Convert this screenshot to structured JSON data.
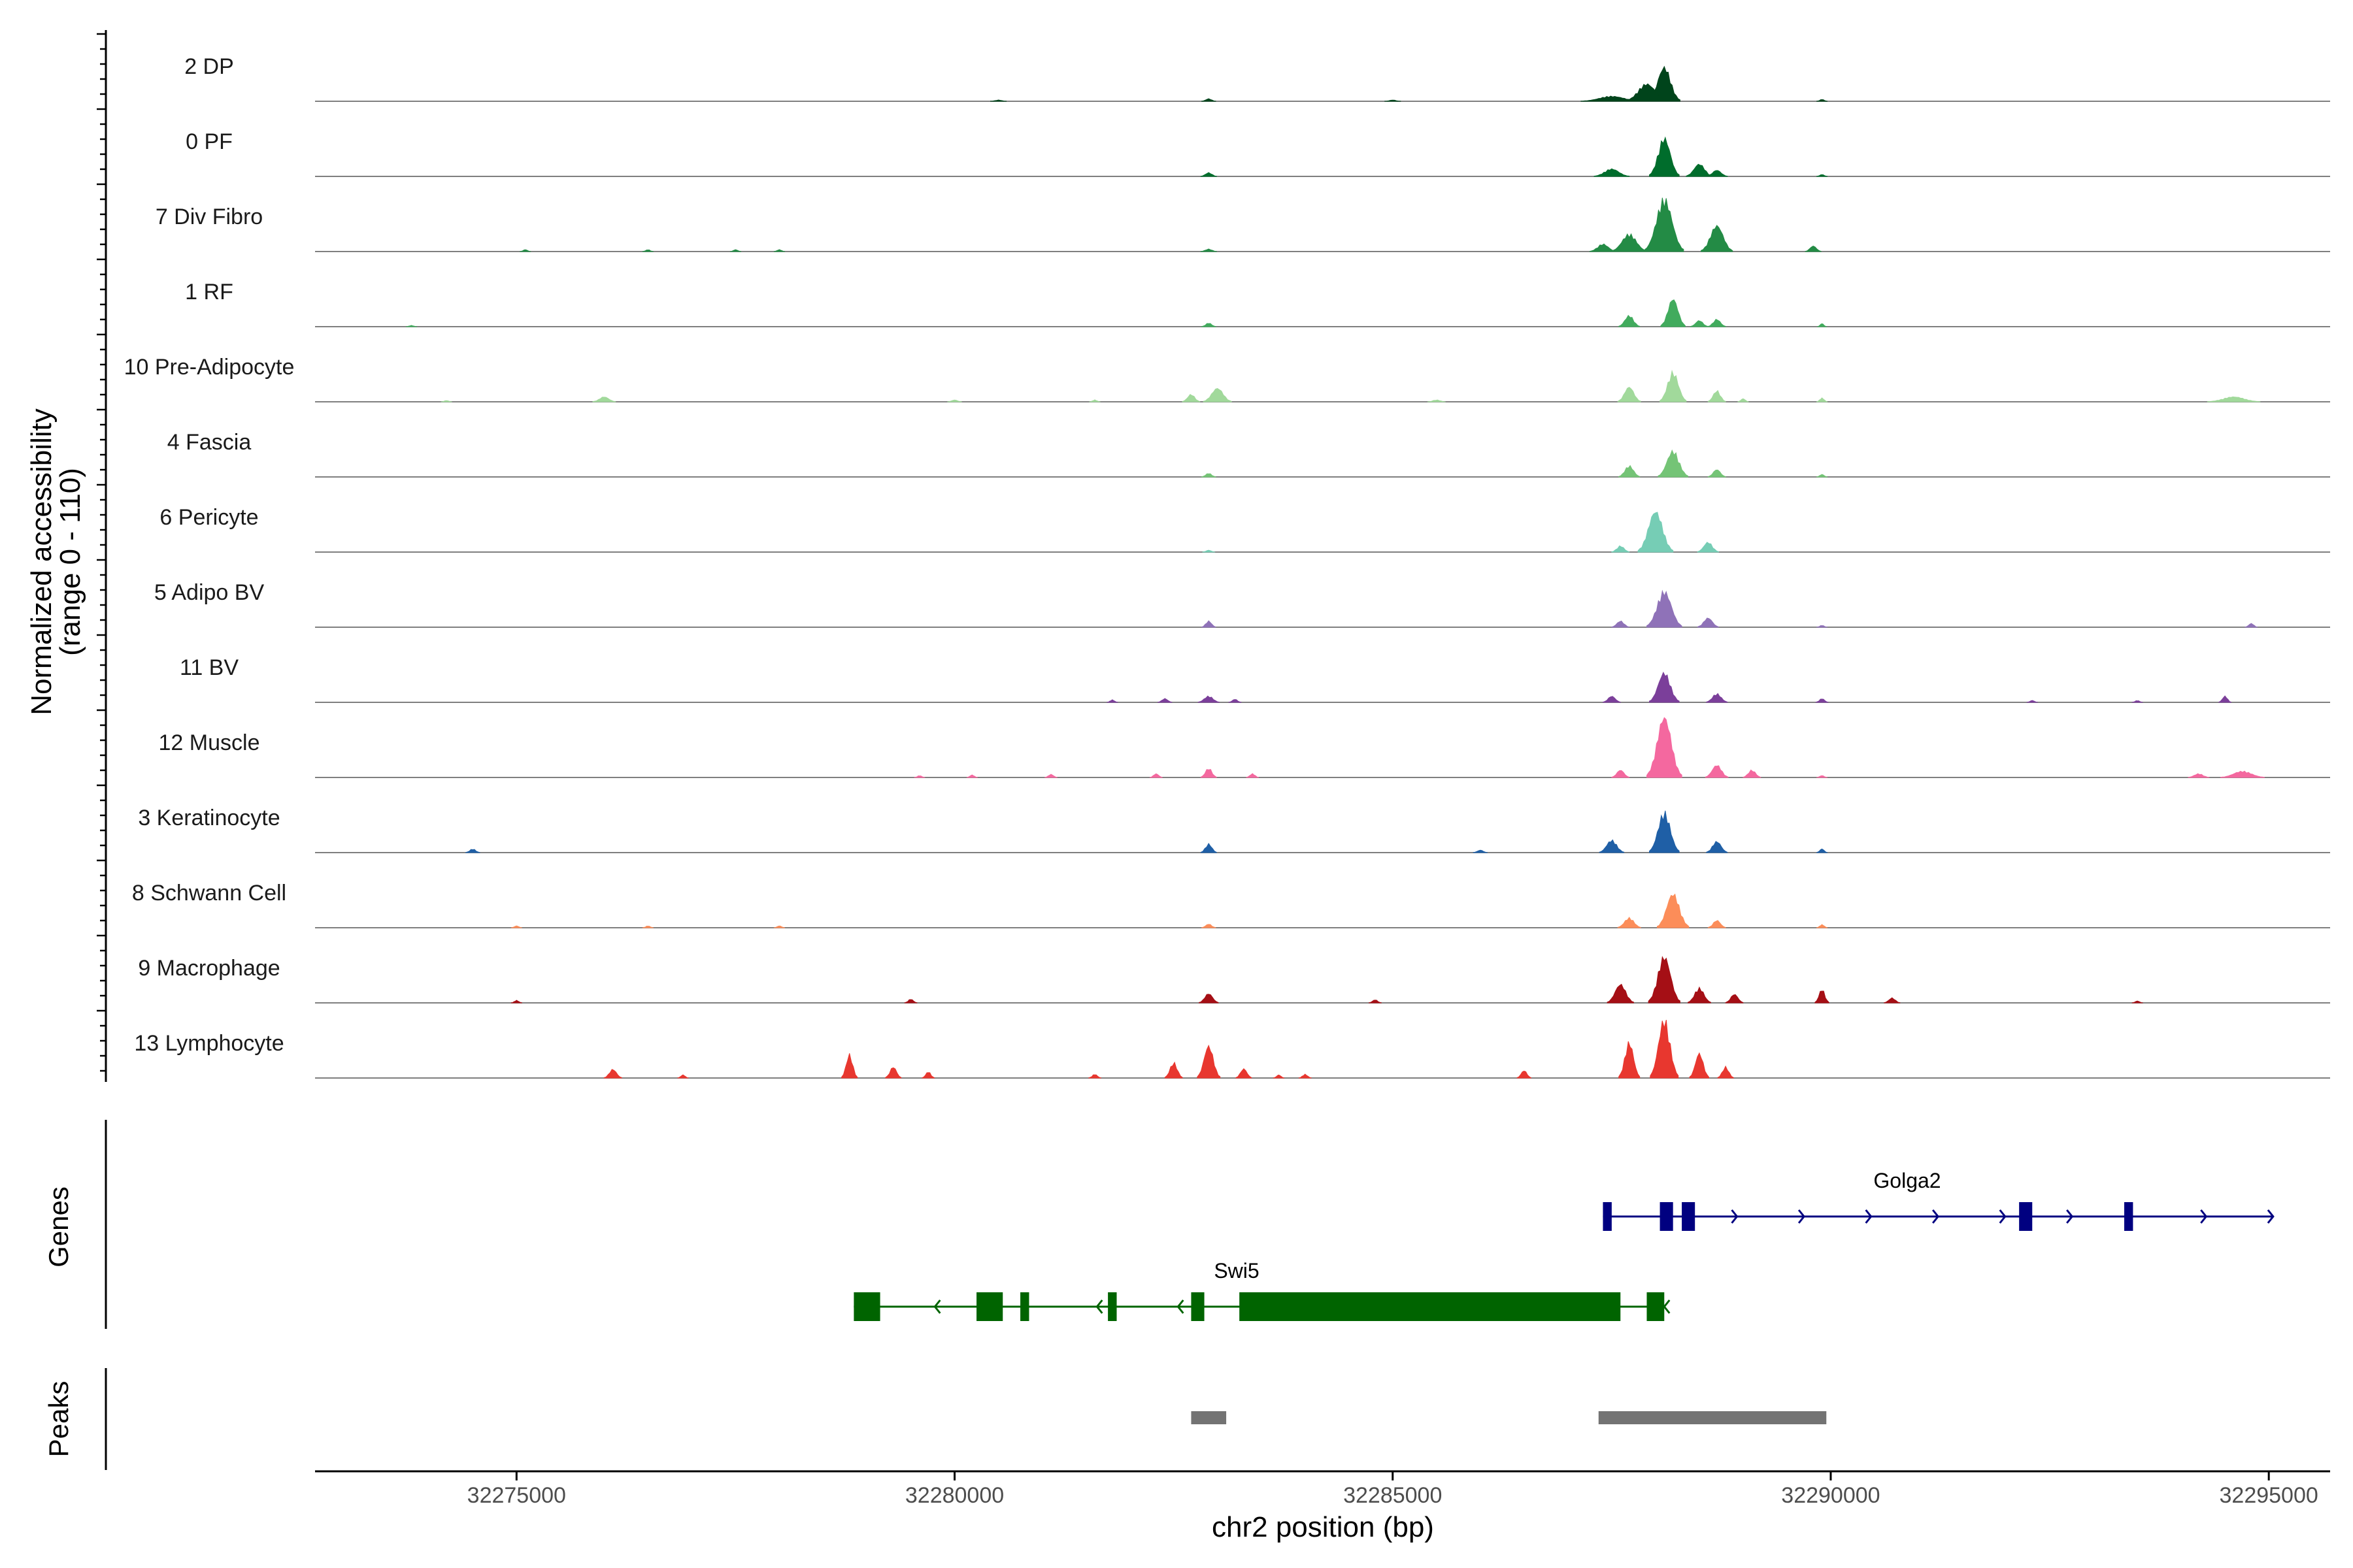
{
  "chart_data": {
    "type": "coverage",
    "chromosome": "chr2",
    "xlim": [
      32272700,
      32295700
    ],
    "xlabel": "chr2 position (bp)",
    "x_ticks": [
      32275000,
      32280000,
      32285000,
      32290000,
      32295000
    ],
    "ylabel_line1": "Normalized accessibility",
    "ylabel_line2": "(range 0 - 110)",
    "y_range": [
      0,
      110
    ],
    "tracks": [
      {
        "name": "2 DP",
        "color": "#00441b",
        "peaks": [
          [
            32288100,
            55,
            180
          ],
          [
            32287900,
            28,
            240
          ],
          [
            32287500,
            8,
            350
          ],
          [
            32282900,
            4,
            80
          ],
          [
            32289900,
            3,
            60
          ],
          [
            32285000,
            2,
            90
          ],
          [
            32280500,
            2,
            90
          ]
        ]
      },
      {
        "name": "0 PF",
        "color": "#006d2c",
        "peaks": [
          [
            32288100,
            62,
            170
          ],
          [
            32288500,
            20,
            150
          ],
          [
            32287500,
            12,
            200
          ],
          [
            32288700,
            10,
            120
          ],
          [
            32282900,
            6,
            90
          ],
          [
            32289900,
            3,
            60
          ]
        ]
      },
      {
        "name": "7 Div Fibro",
        "color": "#238b45",
        "peaks": [
          [
            32288100,
            85,
            220
          ],
          [
            32288700,
            42,
            180
          ],
          [
            32287700,
            28,
            200
          ],
          [
            32287400,
            12,
            150
          ],
          [
            32289800,
            9,
            90
          ],
          [
            32282900,
            4,
            90
          ],
          [
            32275100,
            3,
            60
          ],
          [
            32276500,
            3,
            60
          ],
          [
            32277500,
            3,
            60
          ],
          [
            32278000,
            3,
            60
          ]
        ]
      },
      {
        "name": "1 RF",
        "color": "#41ab5d",
        "peaks": [
          [
            32288200,
            45,
            140
          ],
          [
            32287700,
            18,
            120
          ],
          [
            32288700,
            12,
            100
          ],
          [
            32288500,
            10,
            100
          ],
          [
            32282900,
            6,
            80
          ],
          [
            32289900,
            5,
            50
          ],
          [
            32273800,
            2,
            60
          ]
        ]
      },
      {
        "name": "10 Pre-Adipocyte",
        "color": "#a1d99b",
        "peaks": [
          [
            32288200,
            48,
            150
          ],
          [
            32287700,
            24,
            130
          ],
          [
            32288700,
            18,
            100
          ],
          [
            32283000,
            22,
            160
          ],
          [
            32282700,
            12,
            100
          ],
          [
            32276000,
            8,
            130
          ],
          [
            32294600,
            8,
            300
          ],
          [
            32289900,
            6,
            60
          ],
          [
            32289000,
            5,
            60
          ],
          [
            32285500,
            3,
            100
          ],
          [
            32280000,
            3,
            80
          ],
          [
            32281600,
            3,
            60
          ],
          [
            32274200,
            2,
            60
          ]
        ]
      },
      {
        "name": "4 Fascia",
        "color": "#74c476",
        "peaks": [
          [
            32288200,
            42,
            170
          ],
          [
            32287700,
            18,
            120
          ],
          [
            32288700,
            12,
            100
          ],
          [
            32282900,
            6,
            80
          ],
          [
            32289900,
            4,
            60
          ]
        ]
      },
      {
        "name": "6 Pericyte",
        "color": "#76cdb5",
        "peaks": [
          [
            32288000,
            66,
            200
          ],
          [
            32288600,
            16,
            120
          ],
          [
            32287600,
            10,
            100
          ],
          [
            32282900,
            3,
            70
          ]
        ]
      },
      {
        "name": "5 Adipo BV",
        "color": "#8f72b8",
        "peaks": [
          [
            32288100,
            58,
            200
          ],
          [
            32288600,
            15,
            120
          ],
          [
            32287600,
            10,
            100
          ],
          [
            32282900,
            10,
            80
          ],
          [
            32294800,
            6,
            70
          ],
          [
            32289900,
            3,
            60
          ]
        ]
      },
      {
        "name": "11 BV",
        "color": "#7b3f9a",
        "peaks": [
          [
            32288100,
            48,
            170
          ],
          [
            32288700,
            14,
            120
          ],
          [
            32287500,
            10,
            100
          ],
          [
            32282900,
            10,
            120
          ],
          [
            32282400,
            6,
            80
          ],
          [
            32294500,
            10,
            70
          ],
          [
            32289900,
            6,
            70
          ],
          [
            32283200,
            5,
            70
          ],
          [
            32281800,
            4,
            60
          ],
          [
            32292300,
            3,
            60
          ],
          [
            32293500,
            3,
            60
          ]
        ]
      },
      {
        "name": "12 Muscle",
        "color": "#f4689f",
        "peaks": [
          [
            32288100,
            98,
            200
          ],
          [
            32288700,
            20,
            130
          ],
          [
            32289100,
            12,
            100
          ],
          [
            32287600,
            12,
            100
          ],
          [
            32282900,
            15,
            90
          ],
          [
            32282300,
            6,
            70
          ],
          [
            32283400,
            6,
            70
          ],
          [
            32294700,
            10,
            250
          ],
          [
            32294200,
            6,
            120
          ],
          [
            32281100,
            5,
            70
          ],
          [
            32280200,
            4,
            60
          ],
          [
            32279600,
            3,
            60
          ],
          [
            32289900,
            3,
            60
          ]
        ]
      },
      {
        "name": "3 Keratinocyte",
        "color": "#1f5fa6",
        "peaks": [
          [
            32288100,
            65,
            170
          ],
          [
            32288700,
            18,
            120
          ],
          [
            32287500,
            20,
            140
          ],
          [
            32282900,
            14,
            90
          ],
          [
            32289900,
            6,
            60
          ],
          [
            32274500,
            6,
            80
          ],
          [
            32286000,
            4,
            80
          ]
        ]
      },
      {
        "name": "8 Schwann Cell",
        "color": "#fc8d59",
        "peaks": [
          [
            32288200,
            55,
            180
          ],
          [
            32287700,
            16,
            130
          ],
          [
            32288700,
            12,
            100
          ],
          [
            32282900,
            6,
            80
          ],
          [
            32289900,
            5,
            60
          ],
          [
            32275000,
            3,
            60
          ],
          [
            32276500,
            3,
            60
          ],
          [
            32278000,
            3,
            60
          ]
        ]
      },
      {
        "name": "9 Macrophage",
        "color": "#a50f15",
        "peaks": [
          [
            32288100,
            75,
            180
          ],
          [
            32287600,
            30,
            150
          ],
          [
            32288500,
            24,
            130
          ],
          [
            32288900,
            14,
            100
          ],
          [
            32289900,
            22,
            80
          ],
          [
            32282900,
            15,
            110
          ],
          [
            32290700,
            8,
            90
          ],
          [
            32279500,
            6,
            70
          ],
          [
            32284800,
            5,
            70
          ],
          [
            32275000,
            4,
            60
          ],
          [
            32293500,
            3,
            60
          ]
        ]
      },
      {
        "name": "13 Lymphocyte",
        "color": "#e8372f",
        "peaks": [
          [
            32288100,
            95,
            160
          ],
          [
            32287700,
            58,
            120
          ],
          [
            32288500,
            40,
            110
          ],
          [
            32288800,
            18,
            90
          ],
          [
            32282900,
            52,
            130
          ],
          [
            32282500,
            25,
            100
          ],
          [
            32283300,
            15,
            90
          ],
          [
            32278800,
            38,
            90
          ],
          [
            32279300,
            18,
            90
          ],
          [
            32279700,
            10,
            70
          ],
          [
            32276100,
            14,
            100
          ],
          [
            32276900,
            5,
            60
          ],
          [
            32281600,
            6,
            70
          ],
          [
            32286500,
            12,
            80
          ],
          [
            32284000,
            6,
            70
          ],
          [
            32283700,
            5,
            60
          ]
        ]
      }
    ],
    "genes": [
      {
        "name": "Golga2",
        "strand": "+",
        "color": "#000080",
        "start": 32287400,
        "end": 32295050,
        "exons": [
          [
            32287400,
            32287500
          ],
          [
            32288050,
            32288200
          ],
          [
            32288300,
            32288450
          ],
          [
            32292150,
            32292300
          ],
          [
            32293350,
            32293450
          ]
        ]
      },
      {
        "name": "Swi5",
        "strand": "-",
        "color": "#006400",
        "start": 32278850,
        "end": 32288100,
        "exons": [
          [
            32278850,
            32279150
          ],
          [
            32280250,
            32280550
          ],
          [
            32280750,
            32280850
          ],
          [
            32281750,
            32281850
          ],
          [
            32282700,
            32282850
          ],
          [
            32283250,
            32287600
          ],
          [
            32287900,
            32288100
          ]
        ]
      }
    ],
    "genes_panel_title": "Genes",
    "peaks_panel_title": "Peaks",
    "peak_regions": [
      [
        32282700,
        32283100
      ],
      [
        32287350,
        32289950
      ]
    ]
  }
}
